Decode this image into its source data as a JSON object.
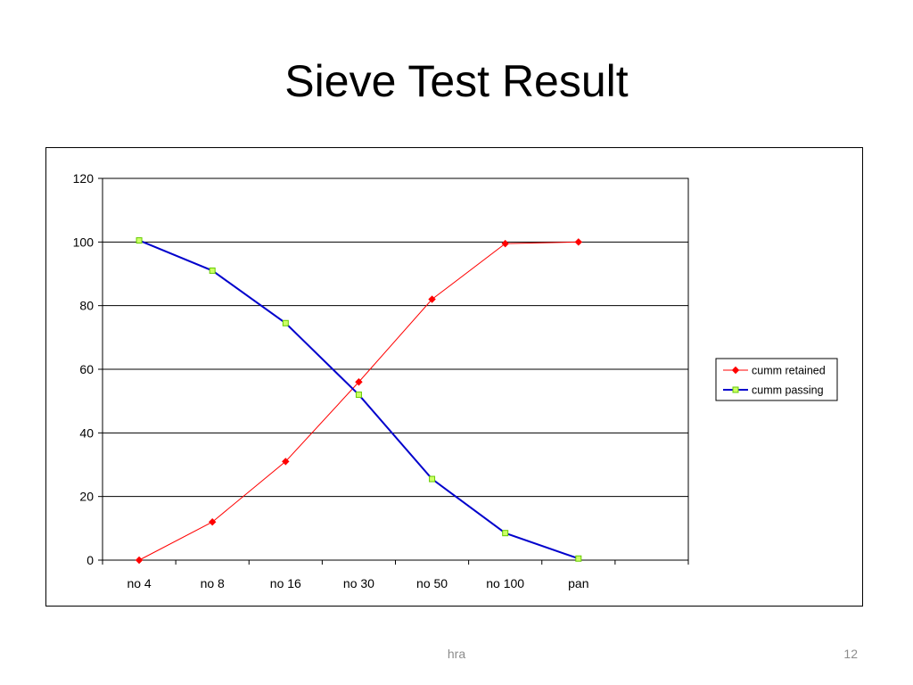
{
  "slide": {
    "title": "Sieve Test Result",
    "footer": "hra",
    "page_number": "12"
  },
  "chart_data": {
    "type": "line",
    "title": "",
    "xlabel": "",
    "ylabel": "",
    "categories": [
      "no 4",
      "no 8",
      "no 16",
      "no 30",
      "no 50",
      "no 100",
      "pan"
    ],
    "ylim": [
      0,
      120
    ],
    "yticks": [
      0,
      20,
      40,
      60,
      80,
      100,
      120
    ],
    "grid": true,
    "legend_position": "right",
    "series": [
      {
        "name": "cumm retained",
        "values": [
          0,
          12,
          31,
          56,
          82,
          99.5,
          100
        ],
        "color": "#ff0000",
        "marker": "diamond"
      },
      {
        "name": "cumm passing",
        "values": [
          100.5,
          91,
          74.5,
          52,
          25.5,
          8.5,
          0.5
        ],
        "color": "#0000cc",
        "marker": "square",
        "marker_fill": "#ccff66",
        "marker_stroke": "#66cc00"
      }
    ]
  }
}
